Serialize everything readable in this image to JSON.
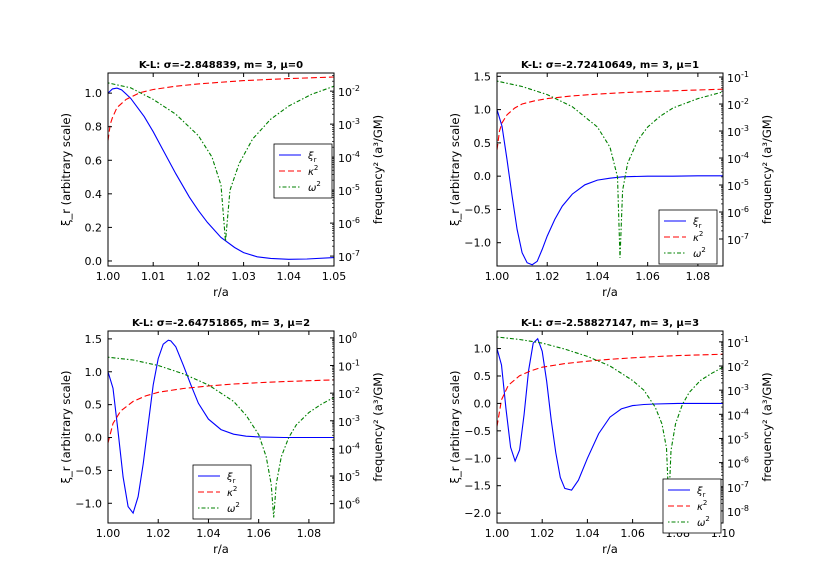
{
  "figure": {
    "background": "#ffffff",
    "series_colors": {
      "xi_r": "#0000ff",
      "kappa2": "#ff0000",
      "omega2": "#008000"
    }
  },
  "chart_data": [
    {
      "type": "line",
      "title": "K-L: σ=-2.848839, m= 3, μ=0",
      "xlabel": "r/a",
      "ylabel": "ξ_r (arbitrary scale)",
      "y2label": "frequency² (a³/GM)",
      "xlim": [
        1.0,
        1.05
      ],
      "ylim": [
        -0.03,
        1.12
      ],
      "y2_log_range": [
        -7.3,
        -1.45
      ],
      "xticks": [
        1.0,
        1.01,
        1.02,
        1.03,
        1.04,
        1.05
      ],
      "xticklabels": [
        "1.00",
        "1.01",
        "1.02",
        "1.03",
        "1.04",
        "1.05"
      ],
      "yticks": [
        0.0,
        0.2,
        0.4,
        0.6,
        0.8,
        1.0
      ],
      "yticklabels": [
        "0.0",
        "0.2",
        "0.4",
        "0.6",
        "0.8",
        "1.0"
      ],
      "y2ticks": [
        -7,
        -6,
        -5,
        -4,
        -3,
        -2
      ],
      "y2ticklabels": [
        [
          "10",
          "-7"
        ],
        [
          "10",
          "-6"
        ],
        [
          "10",
          "-5"
        ],
        [
          "10",
          "-4"
        ],
        [
          "10",
          "-3"
        ],
        [
          "10",
          "-2"
        ]
      ],
      "legend_position": "center-right",
      "legend": [
        {
          "key": "xi_r",
          "label": "ξ",
          "sub": "r"
        },
        {
          "key": "kappa2",
          "label": "κ",
          "sup": "2"
        },
        {
          "key": "omega2",
          "label": "ω",
          "sup": "2"
        }
      ],
      "series": [
        {
          "name": "ξ_r",
          "axis": "left",
          "style": "solid",
          "color": "#0000ff",
          "x": [
            1.0,
            1.001,
            1.002,
            1.003,
            1.005,
            1.008,
            1.01,
            1.012,
            1.015,
            1.018,
            1.02,
            1.022,
            1.025,
            1.028,
            1.03,
            1.033,
            1.036,
            1.04,
            1.044,
            1.05
          ],
          "y": [
            1.0,
            1.025,
            1.03,
            1.02,
            0.97,
            0.86,
            0.77,
            0.67,
            0.52,
            0.38,
            0.3,
            0.23,
            0.14,
            0.08,
            0.05,
            0.025,
            0.015,
            0.01,
            0.012,
            0.02
          ]
        },
        {
          "name": "κ²",
          "axis": "right-log10",
          "style": "dashed",
          "color": "#ff0000",
          "x": [
            1.0,
            1.0005,
            1.001,
            1.002,
            1.004,
            1.007,
            1.01,
            1.015,
            1.02,
            1.03,
            1.04,
            1.05
          ],
          "y": [
            -3.5,
            -3.0,
            -2.8,
            -2.5,
            -2.25,
            -2.05,
            -1.95,
            -1.85,
            -1.78,
            -1.68,
            -1.62,
            -1.57
          ]
        },
        {
          "name": "ω²",
          "axis": "right-log10",
          "style": "dashdot",
          "color": "#008000",
          "x": [
            1.0,
            1.005,
            1.01,
            1.015,
            1.02,
            1.023,
            1.025,
            1.026,
            1.027,
            1.029,
            1.032,
            1.036,
            1.04,
            1.045,
            1.05
          ],
          "y": [
            -1.75,
            -1.9,
            -2.25,
            -2.7,
            -3.35,
            -4.0,
            -4.85,
            -6.55,
            -5.0,
            -4.2,
            -3.45,
            -2.85,
            -2.45,
            -2.1,
            -1.85
          ]
        }
      ]
    },
    {
      "type": "line",
      "title": "K-L: σ=-2.72410649, m= 3, μ=1",
      "xlabel": "r/a",
      "ylabel": "ξ_r (arbitrary scale)",
      "y2label": "frequency² (a³/GM)",
      "xlim": [
        1.0,
        1.09
      ],
      "ylim": [
        -1.35,
        1.55
      ],
      "y2_log_range": [
        -8.0,
        -0.85
      ],
      "xticks": [
        1.0,
        1.02,
        1.04,
        1.06,
        1.08
      ],
      "xticklabels": [
        "1.00",
        "1.02",
        "1.04",
        "1.06",
        "1.08"
      ],
      "yticks": [
        -1.0,
        -0.5,
        0.0,
        0.5,
        1.0,
        1.5
      ],
      "yticklabels": [
        "−1.0",
        "−0.5",
        "0.0",
        "0.5",
        "1.0",
        "1.5"
      ],
      "y2ticks": [
        -7,
        -6,
        -5,
        -4,
        -3,
        -2,
        -1
      ],
      "y2ticklabels": [
        [
          "10",
          "-7"
        ],
        [
          "10",
          "-6"
        ],
        [
          "10",
          "-5"
        ],
        [
          "10",
          "-4"
        ],
        [
          "10",
          "-3"
        ],
        [
          "10",
          "-2"
        ],
        [
          "10",
          "-1"
        ]
      ],
      "legend_position": "lower-right",
      "legend": [
        {
          "key": "xi_r",
          "label": "ξ",
          "sub": "r"
        },
        {
          "key": "kappa2",
          "label": "κ",
          "sup": "2"
        },
        {
          "key": "omega2",
          "label": "ω",
          "sup": "2"
        }
      ],
      "series": [
        {
          "name": "ξ_r",
          "axis": "left",
          "style": "solid",
          "color": "#0000ff",
          "x": [
            1.0,
            1.002,
            1.004,
            1.006,
            1.008,
            1.01,
            1.012,
            1.014,
            1.016,
            1.018,
            1.02,
            1.023,
            1.026,
            1.03,
            1.035,
            1.04,
            1.045,
            1.05,
            1.06,
            1.07,
            1.08,
            1.09
          ],
          "y": [
            1.0,
            0.75,
            0.25,
            -0.3,
            -0.8,
            -1.15,
            -1.3,
            -1.33,
            -1.28,
            -1.1,
            -0.9,
            -0.65,
            -0.45,
            -0.27,
            -0.13,
            -0.06,
            -0.03,
            -0.01,
            0.0,
            0.0,
            0.005,
            0.005
          ]
        },
        {
          "name": "κ²",
          "axis": "right-log10",
          "style": "dashed",
          "color": "#ff0000",
          "x": [
            1.0,
            1.001,
            1.002,
            1.004,
            1.007,
            1.01,
            1.015,
            1.02,
            1.03,
            1.04,
            1.05,
            1.06,
            1.07,
            1.08,
            1.09
          ],
          "y": [
            -3.7,
            -3.0,
            -2.7,
            -2.4,
            -2.15,
            -2.0,
            -1.88,
            -1.8,
            -1.7,
            -1.63,
            -1.58,
            -1.54,
            -1.51,
            -1.48,
            -1.45
          ]
        },
        {
          "name": "ω²",
          "axis": "right-log10",
          "style": "dashdot",
          "color": "#008000",
          "x": [
            1.0,
            1.01,
            1.02,
            1.03,
            1.04,
            1.045,
            1.048,
            1.049,
            1.05,
            1.052,
            1.056,
            1.06,
            1.065,
            1.07,
            1.08,
            1.09
          ],
          "y": [
            -1.15,
            -1.35,
            -1.65,
            -2.1,
            -2.85,
            -3.6,
            -4.7,
            -7.7,
            -5.2,
            -4.2,
            -3.35,
            -2.85,
            -2.45,
            -2.15,
            -1.8,
            -1.55
          ]
        }
      ]
    },
    {
      "type": "line",
      "title": "K-L: σ=-2.64751865, m= 3, μ=2",
      "xlabel": "r/a",
      "ylabel": "ξ_r (arbitrary scale)",
      "y2label": "frequency² (a³/GM)",
      "xlim": [
        1.0,
        1.09
      ],
      "ylim": [
        -1.3,
        1.62
      ],
      "y2_log_range": [
        -6.7,
        0.25
      ],
      "xticks": [
        1.0,
        1.02,
        1.04,
        1.06,
        1.08
      ],
      "xticklabels": [
        "1.00",
        "1.02",
        "1.04",
        "1.06",
        "1.08"
      ],
      "yticks": [
        -1.0,
        -0.5,
        0.0,
        0.5,
        1.0,
        1.5
      ],
      "yticklabels": [
        "−1.0",
        "−0.5",
        "0.0",
        "0.5",
        "1.0",
        "1.5"
      ],
      "y2ticks": [
        -6,
        -5,
        -4,
        -3,
        -2,
        -1,
        0
      ],
      "y2ticklabels": [
        [
          "10",
          "-6"
        ],
        [
          "10",
          "-5"
        ],
        [
          "10",
          "-4"
        ],
        [
          "10",
          "-3"
        ],
        [
          "10",
          "-2"
        ],
        [
          "10",
          "-1"
        ],
        [
          "10",
          "0"
        ]
      ],
      "legend_position": "lower-center",
      "legend": [
        {
          "key": "xi_r",
          "label": "ξ",
          "sub": "r"
        },
        {
          "key": "kappa2",
          "label": "κ",
          "sup": "2"
        },
        {
          "key": "omega2",
          "label": "ω",
          "sup": "2"
        }
      ],
      "series": [
        {
          "name": "ξ_r",
          "axis": "left",
          "style": "solid",
          "color": "#0000ff",
          "x": [
            1.0,
            1.002,
            1.004,
            1.006,
            1.008,
            1.01,
            1.012,
            1.014,
            1.016,
            1.018,
            1.02,
            1.022,
            1.024,
            1.025,
            1.027,
            1.03,
            1.033,
            1.036,
            1.04,
            1.045,
            1.05,
            1.055,
            1.06,
            1.07,
            1.08,
            1.09
          ],
          "y": [
            1.0,
            0.75,
            0.1,
            -0.6,
            -1.05,
            -1.15,
            -0.9,
            -0.4,
            0.2,
            0.8,
            1.2,
            1.42,
            1.48,
            1.47,
            1.38,
            1.1,
            0.8,
            0.52,
            0.28,
            0.12,
            0.05,
            0.02,
            0.01,
            0.0,
            0.0,
            0.0
          ]
        },
        {
          "name": "κ²",
          "axis": "right-log10",
          "style": "dashed",
          "color": "#ff0000",
          "x": [
            1.0,
            1.002,
            1.005,
            1.01,
            1.015,
            1.02,
            1.03,
            1.04,
            1.05,
            1.06,
            1.07,
            1.08,
            1.09
          ],
          "y": [
            -3.8,
            -3.1,
            -2.65,
            -2.3,
            -2.1,
            -1.97,
            -1.83,
            -1.74,
            -1.67,
            -1.62,
            -1.58,
            -1.55,
            -1.52
          ]
        },
        {
          "name": "ω²",
          "axis": "right-log10",
          "style": "dashdot",
          "color": "#008000",
          "x": [
            1.0,
            1.01,
            1.02,
            1.03,
            1.04,
            1.05,
            1.055,
            1.06,
            1.063,
            1.065,
            1.066,
            1.067,
            1.069,
            1.072,
            1.075,
            1.08,
            1.085,
            1.09
          ],
          "y": [
            -0.7,
            -0.8,
            -1.0,
            -1.3,
            -1.7,
            -2.3,
            -2.8,
            -3.5,
            -4.3,
            -5.3,
            -6.5,
            -5.3,
            -4.3,
            -3.6,
            -3.15,
            -2.7,
            -2.4,
            -2.15
          ]
        }
      ]
    },
    {
      "type": "line",
      "title": "K-L: σ=-2.58827147, m= 3, μ=3",
      "xlabel": "r/a",
      "ylabel": "ξ_r (arbitrary scale)",
      "y2label": "frequency² (a³/GM)",
      "xlim": [
        1.0,
        1.1
      ],
      "ylim": [
        -2.18,
        1.32
      ],
      "y2_log_range": [
        -8.5,
        -0.55
      ],
      "xticks": [
        1.0,
        1.02,
        1.04,
        1.06,
        1.08,
        1.1
      ],
      "xticklabels": [
        "1.00",
        "1.02",
        "1.04",
        "1.06",
        "1.08",
        "1.10"
      ],
      "yticks": [
        -2.0,
        -1.5,
        -1.0,
        -0.5,
        0.0,
        0.5,
        1.0
      ],
      "yticklabels": [
        "−2.0",
        "−1.5",
        "−1.0",
        "−0.5",
        "0.0",
        "0.5",
        "1.0"
      ],
      "y2ticks": [
        -8,
        -7,
        -6,
        -5,
        -4,
        -3,
        -2,
        -1
      ],
      "y2ticklabels": [
        [
          "10",
          "-8"
        ],
        [
          "10",
          "-7"
        ],
        [
          "10",
          "-6"
        ],
        [
          "10",
          "-5"
        ],
        [
          "10",
          "-4"
        ],
        [
          "10",
          "-3"
        ],
        [
          "10",
          "-2"
        ],
        [
          "10",
          "-1"
        ]
      ],
      "legend_position": "lower-right",
      "legend": [
        {
          "key": "xi_r",
          "label": "ξ",
          "sub": "r"
        },
        {
          "key": "kappa2",
          "label": "κ",
          "sup": "2"
        },
        {
          "key": "omega2",
          "label": "ω",
          "sup": "2"
        }
      ],
      "series": [
        {
          "name": "ξ_r",
          "axis": "left",
          "style": "solid",
          "color": "#0000ff",
          "x": [
            1.0,
            1.002,
            1.004,
            1.006,
            1.008,
            1.01,
            1.012,
            1.014,
            1.016,
            1.018,
            1.02,
            1.022,
            1.024,
            1.026,
            1.028,
            1.03,
            1.033,
            1.036,
            1.04,
            1.045,
            1.05,
            1.055,
            1.06,
            1.065,
            1.07,
            1.08,
            1.09,
            1.1
          ],
          "y": [
            1.0,
            0.7,
            -0.1,
            -0.8,
            -1.05,
            -0.85,
            -0.2,
            0.6,
            1.1,
            1.18,
            0.95,
            0.4,
            -0.3,
            -0.9,
            -1.35,
            -1.55,
            -1.58,
            -1.4,
            -1.0,
            -0.55,
            -0.25,
            -0.1,
            -0.04,
            -0.02,
            -0.01,
            0.0,
            0.0,
            0.0
          ]
        },
        {
          "name": "κ²",
          "axis": "right-log10",
          "style": "dashed",
          "color": "#ff0000",
          "x": [
            1.0,
            1.002,
            1.005,
            1.01,
            1.015,
            1.02,
            1.03,
            1.04,
            1.05,
            1.06,
            1.07,
            1.08,
            1.09,
            1.1
          ],
          "y": [
            -4.5,
            -3.4,
            -2.8,
            -2.4,
            -2.2,
            -2.05,
            -1.9,
            -1.8,
            -1.72,
            -1.66,
            -1.61,
            -1.57,
            -1.54,
            -1.51
          ]
        },
        {
          "name": "ω²",
          "axis": "right-log10",
          "style": "dashdot",
          "color": "#008000",
          "x": [
            1.0,
            1.01,
            1.02,
            1.03,
            1.04,
            1.05,
            1.06,
            1.065,
            1.07,
            1.073,
            1.075,
            1.076,
            1.077,
            1.079,
            1.082,
            1.085,
            1.09,
            1.095,
            1.1
          ],
          "y": [
            -0.8,
            -0.9,
            -1.05,
            -1.3,
            -1.6,
            -2.0,
            -2.6,
            -3.0,
            -3.7,
            -4.4,
            -5.4,
            -7.7,
            -5.5,
            -4.4,
            -3.6,
            -3.1,
            -2.6,
            -2.3,
            -2.05
          ]
        }
      ]
    }
  ]
}
